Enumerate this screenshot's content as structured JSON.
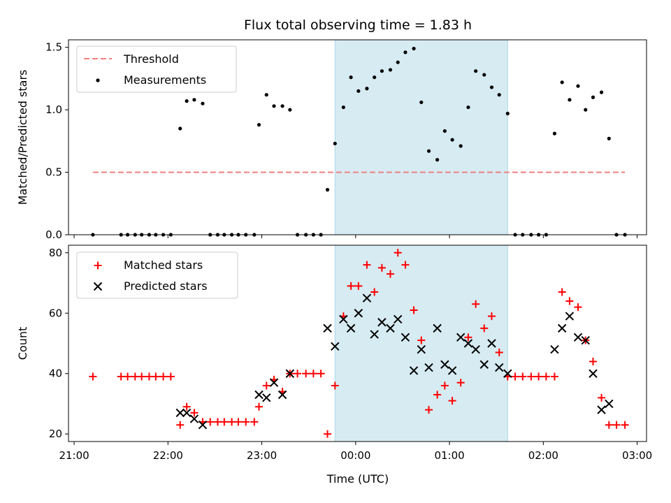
{
  "chart_data": {
    "title": "Flux total observing time = 1.83 h",
    "xlabel": "Time (UTC)",
    "x_unit": "hours (UTC; values >= 24 are after midnight)",
    "xlim": [
      20.94,
      27.1
    ],
    "x_ticks": [
      {
        "value": 21,
        "label": "21:00"
      },
      {
        "value": 22,
        "label": "22:00"
      },
      {
        "value": 23,
        "label": "23:00"
      },
      {
        "value": 24,
        "label": "00:00"
      },
      {
        "value": 25,
        "label": "01:00"
      },
      {
        "value": 26,
        "label": "02:00"
      },
      {
        "value": 27,
        "label": "03:00"
      }
    ],
    "highlight_span": {
      "start": 23.78,
      "end": 25.62,
      "color": "#add8e6"
    },
    "top_panel": {
      "type": "scatter",
      "ylabel": "Matched/Predicted stars",
      "ylim": [
        0,
        1.56
      ],
      "y_ticks": [
        0.0,
        0.5,
        1.0,
        1.5
      ],
      "y_tick_labels": [
        "0.0",
        "0.5",
        "1.0",
        "1.5"
      ],
      "threshold": {
        "name": "Threshold",
        "value": 0.5,
        "x_range": [
          21.2,
          26.87
        ],
        "color": "#f08080"
      },
      "legend": [
        "Threshold",
        "Measurements"
      ],
      "legend_loc": "upper left",
      "series": [
        {
          "name": "Measurements",
          "color": "#000000",
          "points": [
            [
              21.2,
              0
            ],
            [
              21.5,
              0
            ],
            [
              21.57,
              0
            ],
            [
              21.65,
              0
            ],
            [
              21.72,
              0
            ],
            [
              21.8,
              0
            ],
            [
              21.87,
              0
            ],
            [
              21.95,
              0
            ],
            [
              22.03,
              0
            ],
            [
              22.13,
              0.85
            ],
            [
              22.2,
              1.07
            ],
            [
              22.28,
              1.08
            ],
            [
              22.37,
              1.05
            ],
            [
              22.45,
              0
            ],
            [
              22.53,
              0
            ],
            [
              22.6,
              0
            ],
            [
              22.68,
              0
            ],
            [
              22.75,
              0
            ],
            [
              22.83,
              0
            ],
            [
              22.92,
              0
            ],
            [
              22.97,
              0.88
            ],
            [
              23.05,
              1.12
            ],
            [
              23.13,
              1.03
            ],
            [
              23.22,
              1.03
            ],
            [
              23.3,
              1.0
            ],
            [
              23.38,
              0
            ],
            [
              23.47,
              0
            ],
            [
              23.55,
              0
            ],
            [
              23.63,
              0
            ],
            [
              23.7,
              0.36
            ],
            [
              23.78,
              0.73
            ],
            [
              23.87,
              1.02
            ],
            [
              23.95,
              1.26
            ],
            [
              24.03,
              1.15
            ],
            [
              24.12,
              1.17
            ],
            [
              24.2,
              1.26
            ],
            [
              24.28,
              1.31
            ],
            [
              24.37,
              1.32
            ],
            [
              24.45,
              1.38
            ],
            [
              24.53,
              1.46
            ],
            [
              24.62,
              1.49
            ],
            [
              24.7,
              1.06
            ],
            [
              24.78,
              0.67
            ],
            [
              24.87,
              0.6
            ],
            [
              24.95,
              0.83
            ],
            [
              25.03,
              0.76
            ],
            [
              25.12,
              0.71
            ],
            [
              25.2,
              1.02
            ],
            [
              25.28,
              1.31
            ],
            [
              25.37,
              1.28
            ],
            [
              25.45,
              1.18
            ],
            [
              25.53,
              1.12
            ],
            [
              25.62,
              0.97
            ],
            [
              25.7,
              0
            ],
            [
              25.78,
              0
            ],
            [
              25.87,
              0
            ],
            [
              25.95,
              0
            ],
            [
              26.03,
              0
            ],
            [
              26.12,
              0.81
            ],
            [
              26.2,
              1.22
            ],
            [
              26.28,
              1.08
            ],
            [
              26.37,
              1.19
            ],
            [
              26.45,
              1.0
            ],
            [
              26.53,
              1.1
            ],
            [
              26.62,
              1.14
            ],
            [
              26.7,
              0.77
            ],
            [
              26.78,
              0
            ],
            [
              26.87,
              0
            ]
          ]
        }
      ]
    },
    "bottom_panel": {
      "type": "scatter",
      "ylabel": "Count",
      "ylim": [
        17.5,
        82.5
      ],
      "y_ticks": [
        20,
        40,
        60,
        80
      ],
      "y_tick_labels": [
        "20",
        "40",
        "60",
        "80"
      ],
      "legend": [
        "Matched stars",
        "Predicted stars"
      ],
      "legend_loc": "upper left",
      "series": [
        {
          "name": "Matched stars",
          "marker": "plus",
          "color": "#ff0000",
          "points": [
            [
              21.2,
              39
            ],
            [
              21.5,
              39
            ],
            [
              21.57,
              39
            ],
            [
              21.65,
              39
            ],
            [
              21.72,
              39
            ],
            [
              21.8,
              39
            ],
            [
              21.87,
              39
            ],
            [
              21.95,
              39
            ],
            [
              22.03,
              39
            ],
            [
              22.13,
              23
            ],
            [
              22.2,
              29
            ],
            [
              22.28,
              27
            ],
            [
              22.37,
              24
            ],
            [
              22.45,
              24
            ],
            [
              22.53,
              24
            ],
            [
              22.6,
              24
            ],
            [
              22.68,
              24
            ],
            [
              22.75,
              24
            ],
            [
              22.83,
              24
            ],
            [
              22.92,
              24
            ],
            [
              22.97,
              29
            ],
            [
              23.05,
              36
            ],
            [
              23.13,
              38
            ],
            [
              23.22,
              34
            ],
            [
              23.3,
              40
            ],
            [
              23.38,
              40
            ],
            [
              23.47,
              40
            ],
            [
              23.55,
              40
            ],
            [
              23.63,
              40
            ],
            [
              23.7,
              20
            ],
            [
              23.78,
              36
            ],
            [
              23.87,
              59
            ],
            [
              23.95,
              69
            ],
            [
              24.03,
              69
            ],
            [
              24.12,
              76
            ],
            [
              24.2,
              67
            ],
            [
              24.28,
              75
            ],
            [
              24.37,
              73
            ],
            [
              24.45,
              80
            ],
            [
              24.53,
              76
            ],
            [
              24.62,
              61
            ],
            [
              24.7,
              51
            ],
            [
              24.78,
              28
            ],
            [
              24.87,
              33
            ],
            [
              24.95,
              36
            ],
            [
              25.03,
              31
            ],
            [
              25.12,
              37
            ],
            [
              25.2,
              52
            ],
            [
              25.28,
              63
            ],
            [
              25.37,
              55
            ],
            [
              25.45,
              59
            ],
            [
              25.53,
              47
            ],
            [
              25.62,
              39
            ],
            [
              25.7,
              39
            ],
            [
              25.78,
              39
            ],
            [
              25.87,
              39
            ],
            [
              25.95,
              39
            ],
            [
              26.03,
              39
            ],
            [
              26.12,
              39
            ],
            [
              26.2,
              67
            ],
            [
              26.28,
              64
            ],
            [
              26.37,
              62
            ],
            [
              26.45,
              51
            ],
            [
              26.53,
              44
            ],
            [
              26.62,
              32
            ],
            [
              26.7,
              23
            ],
            [
              26.78,
              23
            ],
            [
              26.87,
              23
            ]
          ]
        },
        {
          "name": "Predicted stars",
          "marker": "x",
          "color": "#000000",
          "points": [
            [
              22.13,
              27
            ],
            [
              22.2,
              27
            ],
            [
              22.28,
              25
            ],
            [
              22.37,
              23
            ],
            [
              22.97,
              33
            ],
            [
              23.05,
              32
            ],
            [
              23.13,
              37
            ],
            [
              23.22,
              33
            ],
            [
              23.3,
              40
            ],
            [
              23.7,
              55
            ],
            [
              23.78,
              49
            ],
            [
              23.87,
              58
            ],
            [
              23.95,
              55
            ],
            [
              24.03,
              60
            ],
            [
              24.12,
              65
            ],
            [
              24.2,
              53
            ],
            [
              24.28,
              57
            ],
            [
              24.37,
              55
            ],
            [
              24.45,
              58
            ],
            [
              24.53,
              52
            ],
            [
              24.62,
              41
            ],
            [
              24.7,
              48
            ],
            [
              24.78,
              42
            ],
            [
              24.87,
              55
            ],
            [
              24.95,
              43
            ],
            [
              25.03,
              41
            ],
            [
              25.12,
              52
            ],
            [
              25.2,
              50
            ],
            [
              25.28,
              48
            ],
            [
              25.37,
              43
            ],
            [
              25.45,
              50
            ],
            [
              25.53,
              42
            ],
            [
              25.62,
              40
            ],
            [
              26.12,
              48
            ],
            [
              26.2,
              55
            ],
            [
              26.28,
              59
            ],
            [
              26.37,
              52
            ],
            [
              26.45,
              51
            ],
            [
              26.53,
              40
            ],
            [
              26.62,
              28
            ],
            [
              26.7,
              30
            ]
          ]
        }
      ]
    }
  }
}
